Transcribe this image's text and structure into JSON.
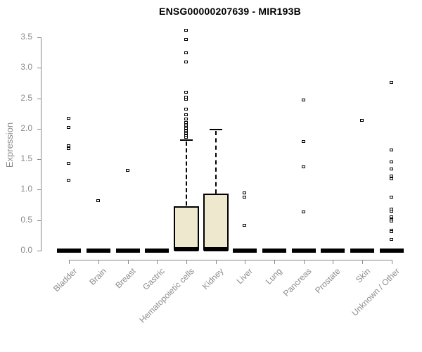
{
  "title": "ENSG00000207639 - MIR193B",
  "chart_data": {
    "type": "boxplot",
    "title": "ENSG00000207639 - MIR193B",
    "xlabel": "",
    "ylabel": "Expression",
    "ylim": [
      0,
      3.5
    ],
    "yticks": [
      0.0,
      0.5,
      1.0,
      1.5,
      2.0,
      2.5,
      3.0,
      3.5
    ],
    "grid": false,
    "legend": false,
    "axis_color": "#888888",
    "text_color": "#8c8c8c",
    "box_fill": "#ede8ce",
    "categories": [
      "Bladder",
      "Brain",
      "Breast",
      "Gastric",
      "Hematopoietic cells",
      "Kidney",
      "Liver",
      "Lung",
      "Pancreas",
      "Prostate",
      "Skin",
      "Unknown / Other"
    ],
    "series": [
      {
        "name": "Bladder",
        "q1": 0,
        "median": 0,
        "q3": 0,
        "whisker_low": 0,
        "whisker_high": 0,
        "outliers": [
          2.17,
          2.02,
          1.72,
          1.68,
          1.43,
          1.15
        ]
      },
      {
        "name": "Brain",
        "q1": 0,
        "median": 0,
        "q3": 0,
        "whisker_low": 0,
        "whisker_high": 0,
        "outliers": [
          0.82
        ]
      },
      {
        "name": "Breast",
        "q1": 0,
        "median": 0,
        "q3": 0,
        "whisker_low": 0,
        "whisker_high": 0,
        "outliers": [
          1.32
        ]
      },
      {
        "name": "Gastric",
        "q1": 0,
        "median": 0,
        "q3": 0,
        "whisker_low": 0,
        "whisker_high": 0,
        "outliers": []
      },
      {
        "name": "Hematopoietic cells",
        "q1": 0,
        "median": 0.02,
        "q3": 0.73,
        "whisker_low": 0,
        "whisker_high": 1.81,
        "outliers": [
          3.62,
          3.47,
          3.25,
          3.1,
          2.6,
          2.52,
          2.48,
          2.32,
          2.23,
          2.16,
          2.1,
          2.07,
          2.04,
          2.02,
          2.0,
          1.98,
          1.96,
          1.94,
          1.92,
          1.9,
          1.88,
          1.86
        ]
      },
      {
        "name": "Kidney",
        "q1": 0,
        "median": 0.02,
        "q3": 0.94,
        "whisker_low": 0,
        "whisker_high": 1.99,
        "outliers": []
      },
      {
        "name": "Liver",
        "q1": 0,
        "median": 0,
        "q3": 0,
        "whisker_low": 0,
        "whisker_high": 0,
        "outliers": [
          0.95,
          0.88,
          0.42
        ]
      },
      {
        "name": "Lung",
        "q1": 0,
        "median": 0,
        "q3": 0,
        "whisker_low": 0,
        "whisker_high": 0,
        "outliers": []
      },
      {
        "name": "Pancreas",
        "q1": 0,
        "median": 0,
        "q3": 0,
        "whisker_low": 0,
        "whisker_high": 0,
        "outliers": [
          2.47,
          1.79,
          1.37,
          0.64
        ]
      },
      {
        "name": "Prostate",
        "q1": 0,
        "median": 0,
        "q3": 0,
        "whisker_low": 0,
        "whisker_high": 0,
        "outliers": []
      },
      {
        "name": "Skin",
        "q1": 0,
        "median": 0,
        "q3": 0,
        "whisker_low": 0,
        "whisker_high": 0,
        "outliers": [
          2.14
        ]
      },
      {
        "name": "Unknown / Other",
        "q1": 0,
        "median": 0,
        "q3": 0,
        "whisker_low": 0,
        "whisker_high": 0,
        "outliers": [
          2.76,
          1.65,
          1.46,
          1.34,
          1.23,
          1.18,
          0.88,
          0.68,
          0.65,
          0.55,
          0.51,
          0.48,
          0.34,
          0.31,
          0.19
        ]
      }
    ]
  }
}
